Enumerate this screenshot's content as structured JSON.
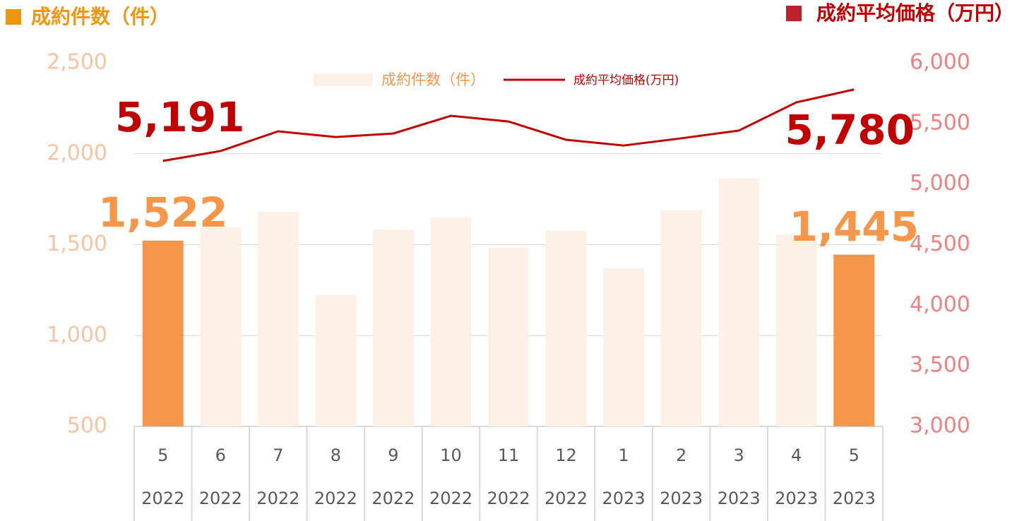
{
  "chart_data": {
    "type": "bar-line",
    "left_axis_title": "成約件数（件）",
    "right_axis_title": "成約平均価格（万円）",
    "categories": [
      "5",
      "6",
      "7",
      "8",
      "9",
      "10",
      "11",
      "12",
      "1",
      "2",
      "3",
      "4",
      "5"
    ],
    "category_years": [
      "2022",
      "2022",
      "2022",
      "2022",
      "2022",
      "2022",
      "2022",
      "2022",
      "2023",
      "2023",
      "2023",
      "2023",
      "2023"
    ],
    "series": [
      {
        "name": "成約件数（件）",
        "type": "bar",
        "color": "#fdf0e6",
        "bar_colors": [
          "#f5964a",
          "#fdf0e6",
          "#fdf0e6",
          "#fdf0e6",
          "#fdf0e6",
          "#fdf0e6",
          "#fdf0e6",
          "#fdf0e6",
          "#fdf0e6",
          "#fdf0e6",
          "#fdf0e6",
          "#fdf0e6",
          "#f5964a"
        ],
        "values": [
          1522,
          1595,
          1681,
          1222,
          1583,
          1650,
          1482,
          1576,
          1370,
          1688,
          1863,
          1556,
          1445
        ],
        "value_labels": [
          "1,522",
          null,
          null,
          null,
          null,
          null,
          null,
          null,
          null,
          null,
          null,
          null,
          "1,445"
        ]
      },
      {
        "name": "成約平均価格(万円)",
        "type": "line",
        "axis": "y2",
        "color": "#c00000",
        "values": [
          5191,
          5272,
          5435,
          5388,
          5417,
          5563,
          5516,
          5365,
          5318,
          5377,
          5441,
          5674,
          5780
        ],
        "value_labels": [
          "5,191",
          null,
          null,
          null,
          null,
          null,
          null,
          null,
          null,
          null,
          null,
          null,
          "5,780"
        ]
      }
    ],
    "ylim": [
      500,
      2500
    ],
    "yticks": [
      500,
      {
        "value": 1000,
        "label": "1,000"
      },
      {
        "value": 1500,
        "label": "1,500"
      },
      {
        "value": 2000,
        "label": "2,000"
      },
      {
        "value": 2500,
        "label": "2,500"
      }
    ],
    "y2lim": [
      3000,
      6000
    ],
    "y2ticks": [
      {
        "value": 3000,
        "label": "3,000"
      },
      {
        "value": 3500,
        "label": "3,500"
      },
      {
        "value": 4000,
        "label": "4,000"
      },
      {
        "value": 4500,
        "label": "4,500"
      },
      {
        "value": 5000,
        "label": "5,000"
      },
      {
        "value": 5500,
        "label": "5,500"
      },
      {
        "value": 6000,
        "label": "6,000"
      }
    ],
    "grid": true
  }
}
